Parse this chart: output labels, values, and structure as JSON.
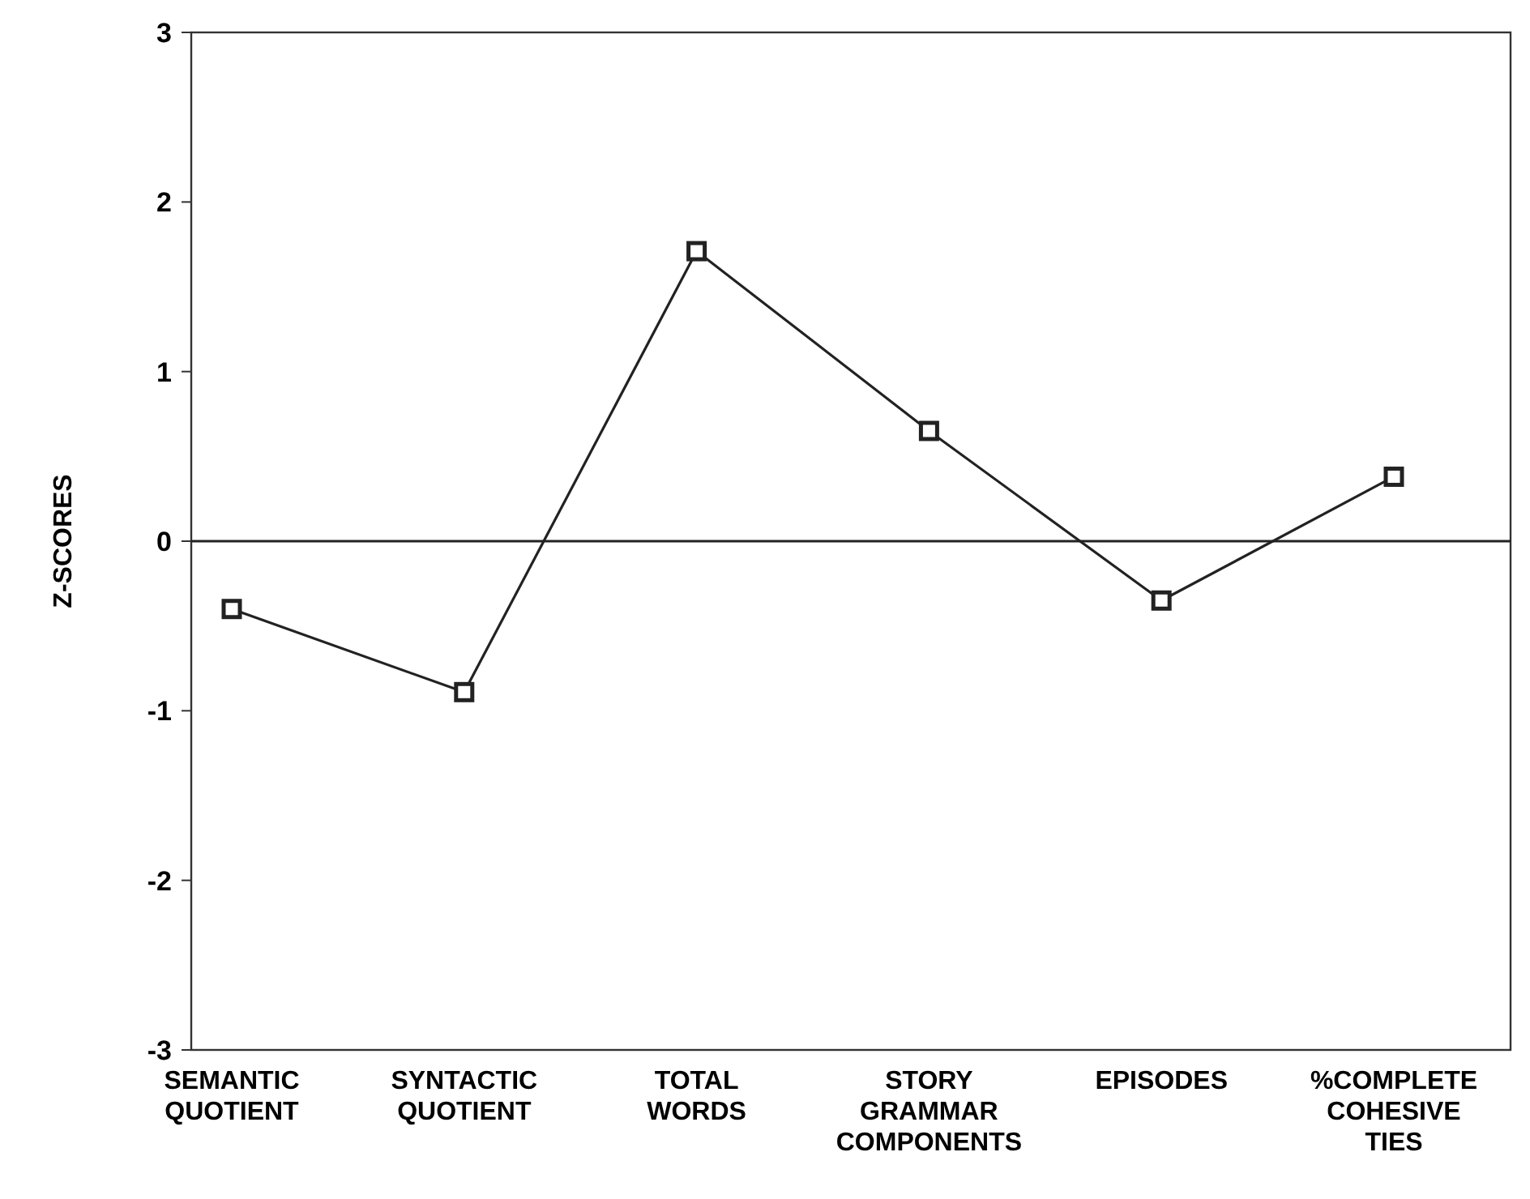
{
  "chart_data": {
    "type": "line",
    "ylabel": "Z-SCORES",
    "categories": [
      "SEMANTIC QUOTIENT",
      "SYNTACTIC QUOTIENT",
      "TOTAL WORDS",
      "STORY GRAMMAR COMPONENTS",
      "EPISODES",
      "%COMPLETE COHESIVE TIES"
    ],
    "series": [
      {
        "color": "#222222",
        "values": [
          -0.4,
          -0.89,
          1.71,
          0.65,
          -0.35,
          0.38
        ]
      }
    ],
    "ylim": [
      -3,
      3
    ],
    "yticks": [
      -3,
      -2,
      -1,
      0,
      1,
      2,
      3
    ],
    "ref_lines": [
      {
        "axis": "y",
        "value": 0,
        "color": "#222222"
      }
    ],
    "marker": "square",
    "line_style": "solid",
    "grid": false
  }
}
